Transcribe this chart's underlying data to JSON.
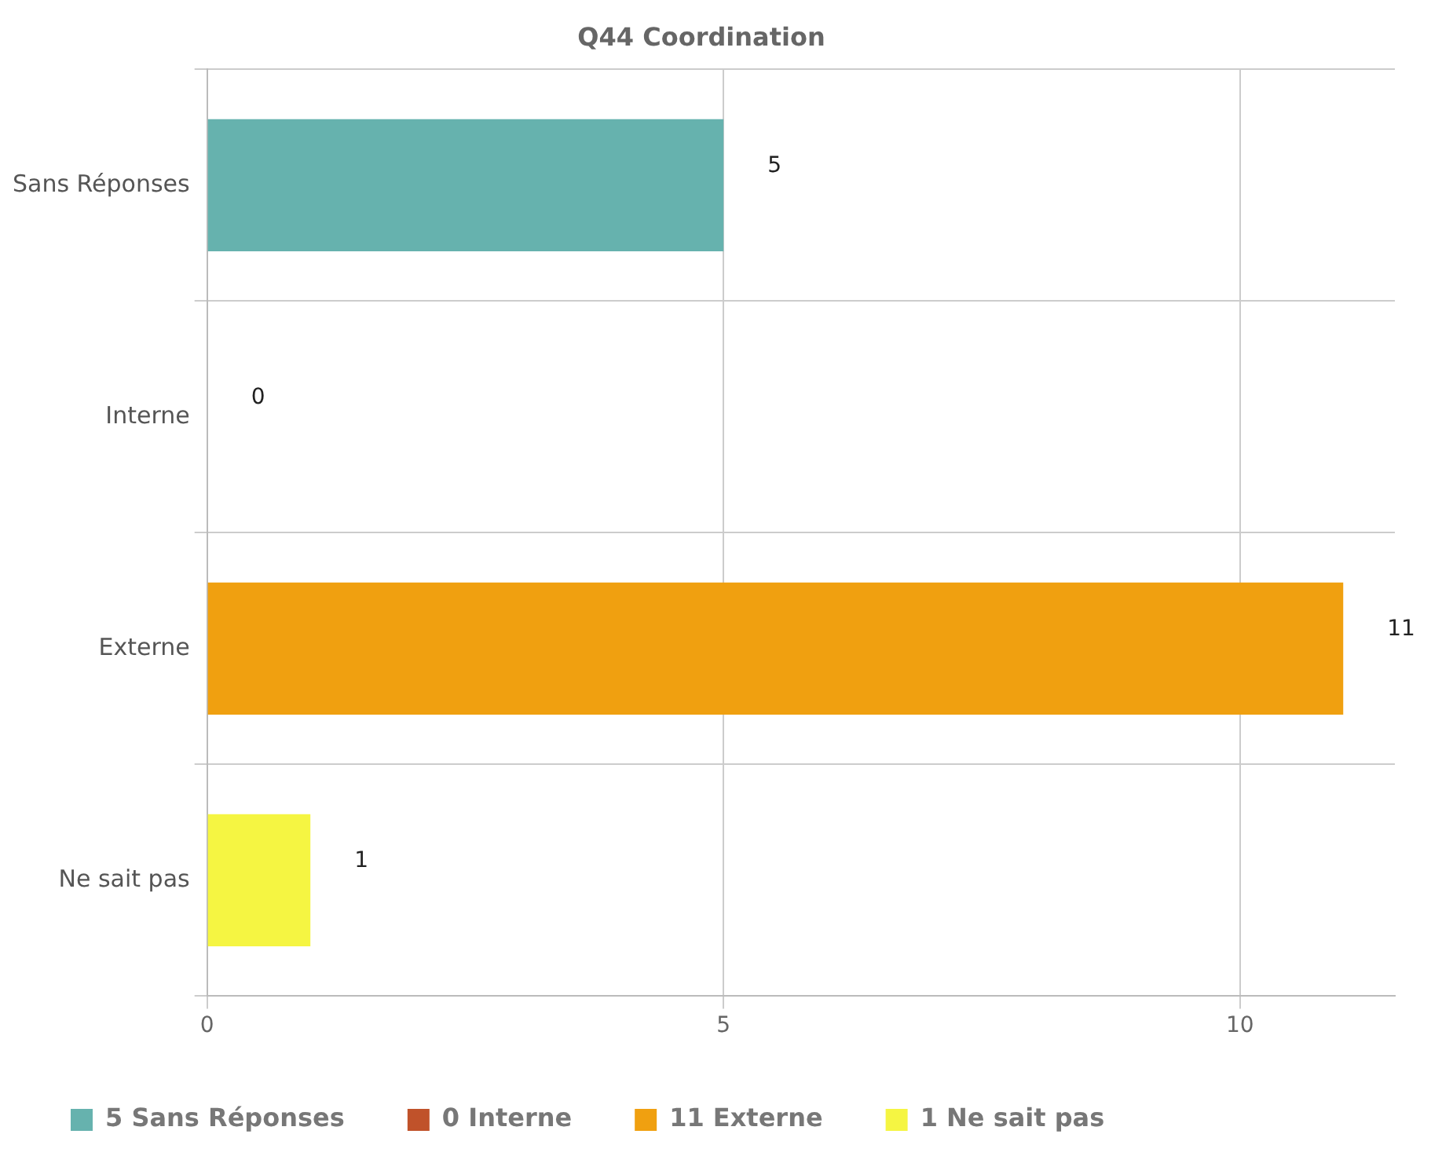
{
  "chart_data": {
    "type": "bar",
    "orientation": "horizontal",
    "stacked": true,
    "title": "Q44 Coordination",
    "categories": [
      "Sans Réponses",
      "Interne",
      "Externe",
      "Ne sait pas"
    ],
    "series": [
      {
        "name": "5 Sans Réponses",
        "color": "#66b2ae",
        "values": [
          5,
          null,
          null,
          null
        ]
      },
      {
        "name": "0 Interne",
        "color": "#c0522a",
        "values": [
          null,
          0,
          null,
          null
        ]
      },
      {
        "name": "11 Externe",
        "color": "#f0a010",
        "values": [
          null,
          null,
          11,
          null
        ]
      },
      {
        "name": "1 Ne sait pas",
        "color": "#f5f542",
        "values": [
          null,
          null,
          null,
          1
        ]
      }
    ],
    "xlim": [
      0,
      11.5
    ],
    "xticks": [
      0,
      5,
      10
    ],
    "grid": true,
    "legend": "bottom",
    "data_labels": true
  }
}
